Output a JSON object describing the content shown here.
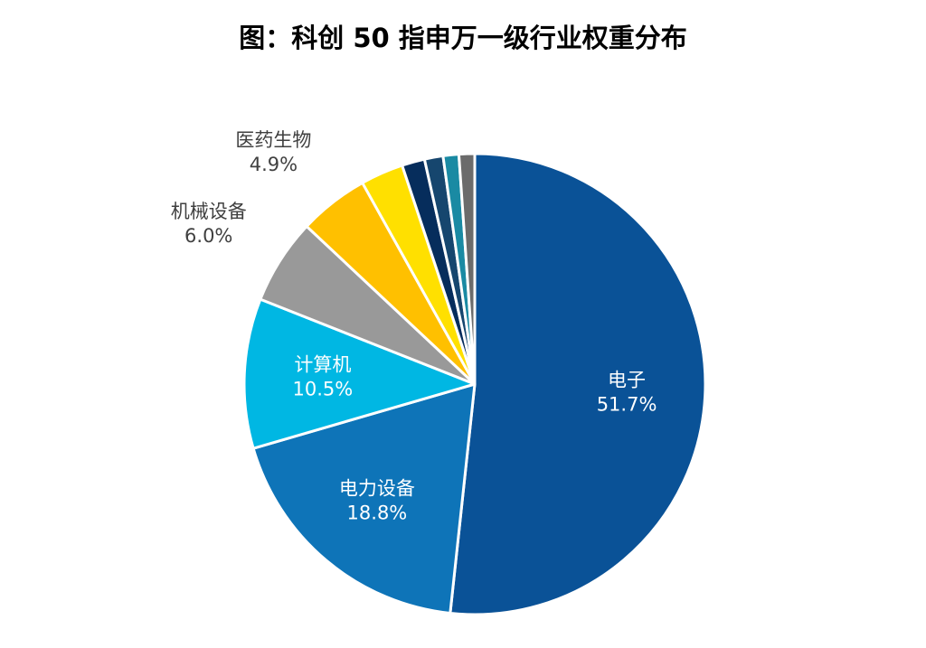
{
  "chart_data": {
    "type": "pie",
    "title": "图：科创 50 指申万一级行业权重分布",
    "start_angle_deg": 0,
    "direction": "clockwise",
    "slices": [
      {
        "name": "电子",
        "value": 51.7,
        "label": "51.7%",
        "color": "#0a5297",
        "label_color": "#ffffff",
        "label_placement": "inside"
      },
      {
        "name": "电力设备",
        "value": 18.8,
        "label": "18.8%",
        "color": "#0e74b8",
        "label_color": "#ffffff",
        "label_placement": "inside"
      },
      {
        "name": "计算机",
        "value": 10.5,
        "label": "10.5%",
        "color": "#00b7e3",
        "label_color": "#ffffff",
        "label_placement": "inside"
      },
      {
        "name": "机械设备",
        "value": 6.0,
        "label": "6.0%",
        "color": "#999999",
        "label_color": "#404040",
        "label_placement": "outside"
      },
      {
        "name": "医药生物",
        "value": 4.9,
        "label": "4.9%",
        "color": "#ffc000",
        "label_color": "#404040",
        "label_placement": "outside"
      },
      {
        "name": "",
        "value": 3.0,
        "label": "",
        "color": "#ffe000"
      },
      {
        "name": "",
        "value": 1.6,
        "label": "",
        "color": "#062d5c"
      },
      {
        "name": "",
        "value": 1.3,
        "label": "",
        "color": "#16466e"
      },
      {
        "name": "",
        "value": 1.1,
        "label": "",
        "color": "#1a8aa3"
      },
      {
        "name": "",
        "value": 1.1,
        "label": "",
        "color": "#6b6b6b"
      }
    ]
  }
}
